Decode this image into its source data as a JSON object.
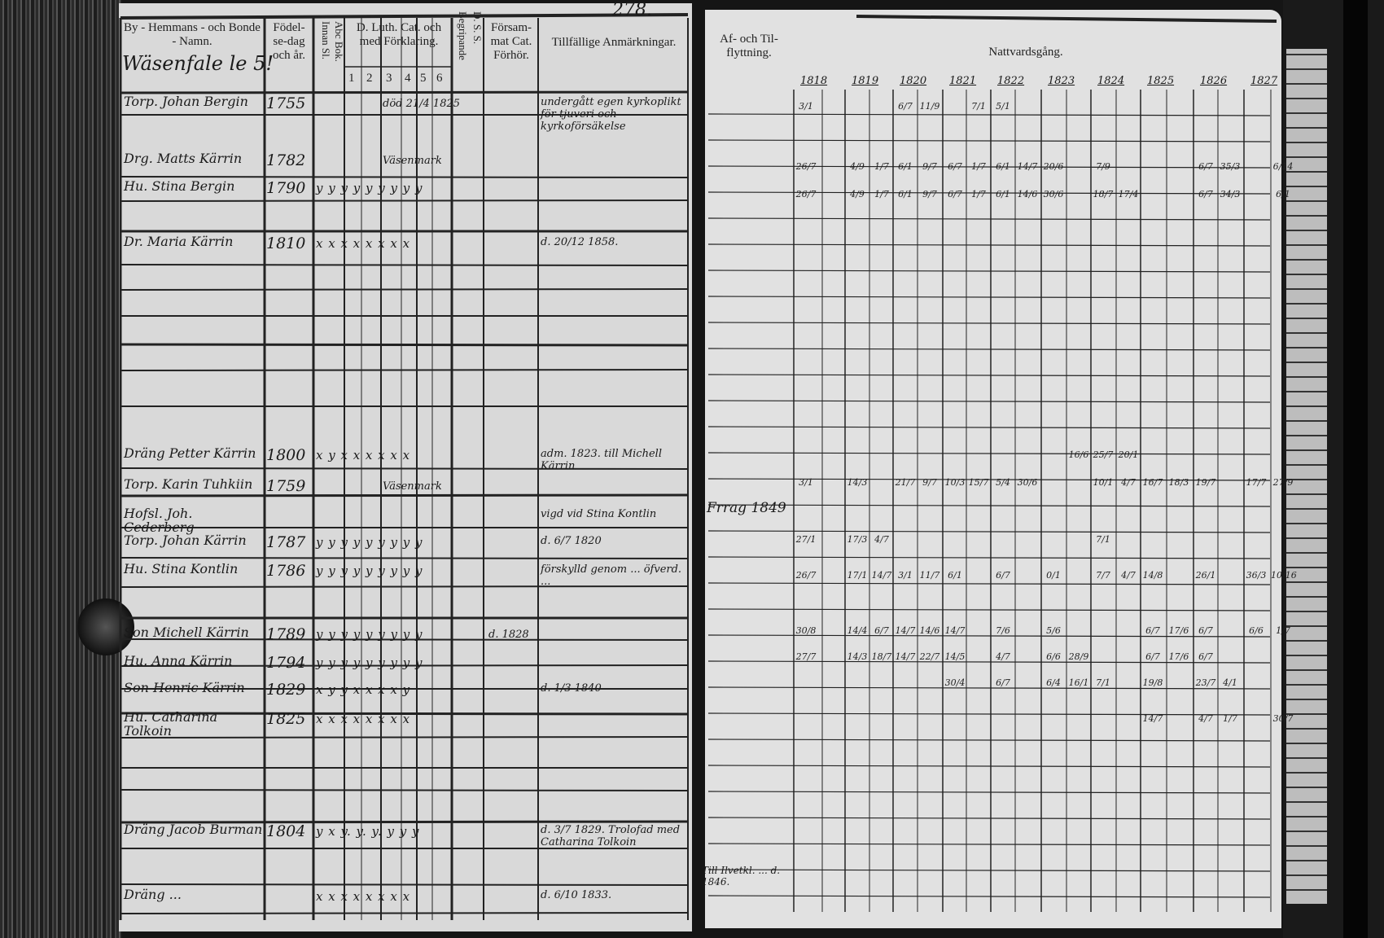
{
  "left_page": {
    "page_number": "278.",
    "headers": {
      "name": "By - Hemmans - och Bonde - Namn.",
      "birth": "Födel-se-dag och år.",
      "abc": "Abc Bok. Innan Sl.",
      "catechism": "D. Luth. Cat. och med Förklaring.",
      "catechism_cols": [
        "1",
        "2",
        "3",
        "4",
        "5",
        "6"
      ],
      "begripande": "Begripande",
      "ds": "D. S. S.",
      "forsamlings": "Försam-mat Cat. Förhör.",
      "remarks": "Tillfällige Anmärkningar."
    },
    "village": "Wäsenfale le 5!",
    "entries": [
      {
        "name": "Torp. Johan Bergin",
        "year": "1755",
        "marks": "",
        "note_mid": "död 21/4 1825",
        "remark": "undergått egen kyrkoplikt för tjuveri och kyrkoförsäkelse"
      },
      {
        "name": "Drg. Matts Kärrin",
        "year": "1782",
        "marks": "",
        "note_mid": "Väsenmark",
        "remark": ""
      },
      {
        "name": "Hu. Stina Bergin",
        "year": "1790",
        "marks": "y y y  y  y  y y y y",
        "note_mid": "",
        "remark": ""
      },
      {
        "name": "Dr. Maria Kärrin",
        "year": "1810",
        "marks": "x x  x  x  x x x x",
        "note_mid": "",
        "remark": "d. 20/12 1858."
      },
      {
        "name": "Dräng Petter Kärrin",
        "year": "1800",
        "marks": "x y  x  x  x x x x",
        "note_mid": "",
        "remark": "adm. 1823. till Michell Kärrin"
      },
      {
        "name": "Torp. Karin Tuhkiin",
        "year": "1759",
        "marks": "",
        "note_mid": "Väsenmark",
        "remark": ""
      },
      {
        "name": "Hofsl. Joh. Cederberg",
        "year": "",
        "marks": "",
        "note_mid": "",
        "remark": "vigd vid Stina Kontlin"
      },
      {
        "name": "Torp. Johan Kärrin",
        "year": "1787",
        "marks": "y y y  y  y y y y y",
        "note_mid": "",
        "remark": "d. 6/7 1820"
      },
      {
        "name": "Hu. Stina Kontlin",
        "year": "1786",
        "marks": "y y y  y  y y y y y",
        "note_mid": "",
        "remark": "förskylld genom ... öfverd. ..."
      },
      {
        "name": "Son Michell Kärrin",
        "year": "1789",
        "marks": "y y y  y  y y y y y",
        "note_mid": "d. 1828",
        "remark": ""
      },
      {
        "name": "Hu. Anna Kärrin",
        "year": "1794",
        "marks": "y y y  y  y y y y y",
        "note_mid": "",
        "remark": ""
      },
      {
        "name": "Son Henric Kärrin",
        "year": "1829",
        "marks": "x y  y  x x x x y",
        "note_mid": "",
        "remark": "d. 1/3 1840"
      },
      {
        "name": "Hu. Catharina Tolkoin",
        "year": "1825",
        "marks": "x x  x  x  x x x x",
        "note_mid": "",
        "remark": ""
      },
      {
        "name": "Dräng Jacob Burman",
        "year": "1804",
        "marks": "y x  y. y. y. y y y",
        "note_mid": "",
        "remark": "d. 3/7 1829. Trolofad med Catharina Tolkoin"
      },
      {
        "name": "Dräng ...",
        "year": "",
        "marks": "x x x  x x  x x x",
        "note_mid": "",
        "remark": "d. 6/10 1833."
      }
    ]
  },
  "right_page": {
    "headers": {
      "moving": "Af- och Til-flyttning.",
      "communion": "Nattvardsgång."
    },
    "years": [
      "1818",
      "1819",
      "1820",
      "1821",
      "1822",
      "1823",
      "1824",
      "1825",
      "1826",
      "1827"
    ],
    "moving_note": "Frrag 1849",
    "bottom_note": "Till Ilvetkl. ... d. 1846.",
    "communion_rows": [
      [
        "3/1",
        "",
        "",
        "",
        "6/7",
        "11/9",
        "",
        "7/1",
        "5/1",
        "",
        "",
        "",
        "",
        "",
        "",
        "",
        "",
        "",
        "",
        ""
      ],
      [
        "26/7",
        "",
        "4/9",
        "1/7",
        "6/1",
        "9/7",
        "6/7",
        "1/7",
        "6/1",
        "14/7",
        "20/6",
        "",
        "7/9",
        "",
        "",
        "",
        "6/7",
        "35/3",
        "",
        "6/14"
      ],
      [
        "26/7",
        "",
        "4/9",
        "1/7",
        "6/1",
        "9/7",
        "6/7",
        "1/7",
        "6/1",
        "14/6",
        "30/6",
        "",
        "18/7",
        "17/4",
        "",
        "",
        "6/7",
        "34/3",
        "",
        "6/1"
      ],
      [
        "",
        "",
        "",
        "",
        "",
        "",
        "",
        "",
        "",
        "",
        "",
        "16/6",
        "25/7",
        "20/1",
        "",
        "",
        "",
        "",
        "",
        ""
      ],
      [
        "3/1",
        "",
        "14/3",
        "",
        "21/7",
        "9/7",
        "10/3",
        "15/7",
        "5/4",
        "30/6",
        "",
        "",
        "10/1",
        "4/7",
        "16/7",
        "18/3",
        "19/7",
        "",
        "17/7",
        "27/9"
      ],
      [
        "27/1",
        "",
        "17/3",
        "4/7",
        "",
        "",
        "",
        "",
        "",
        "",
        "",
        "",
        "7/1",
        "",
        "",
        "",
        "",
        "",
        "",
        ""
      ],
      [
        "26/7",
        "",
        "17/1",
        "14/7",
        "3/1",
        "11/7",
        "6/1",
        "",
        "6/7",
        "",
        "0/1",
        "",
        "7/7",
        "4/7",
        "14/8",
        "",
        "26/1",
        "",
        "36/3",
        "10/16"
      ],
      [
        "30/8",
        "",
        "14/4",
        "6/7",
        "14/7",
        "14/6",
        "14/7",
        "",
        "7/6",
        "",
        "5/6",
        "",
        "",
        "",
        "6/7",
        "17/6",
        "6/7",
        "",
        "6/6",
        "1/7"
      ],
      [
        "27/7",
        "",
        "14/3",
        "18/7",
        "14/7",
        "22/7",
        "14/5",
        "",
        "4/7",
        "",
        "6/6",
        "28/9",
        "",
        "",
        "6/7",
        "17/6",
        "6/7",
        "",
        "",
        ""
      ],
      [
        "",
        "",
        "",
        "",
        "",
        "",
        "30/4",
        "",
        "6/7",
        "",
        "6/4",
        "16/1",
        "7/1",
        "",
        "19/8",
        "",
        "23/7",
        "4/1",
        "",
        ""
      ],
      [
        "",
        "",
        "",
        "",
        "",
        "",
        "",
        "",
        "",
        "",
        "",
        "",
        "",
        "",
        "14/7",
        "",
        "4/7",
        "1/7",
        "",
        "30/7"
      ]
    ]
  },
  "colors": {
    "paper_left": "#d9d9d9",
    "paper_right": "#e1e1e1",
    "ink": "#1c1c1c",
    "background": "#151515"
  }
}
